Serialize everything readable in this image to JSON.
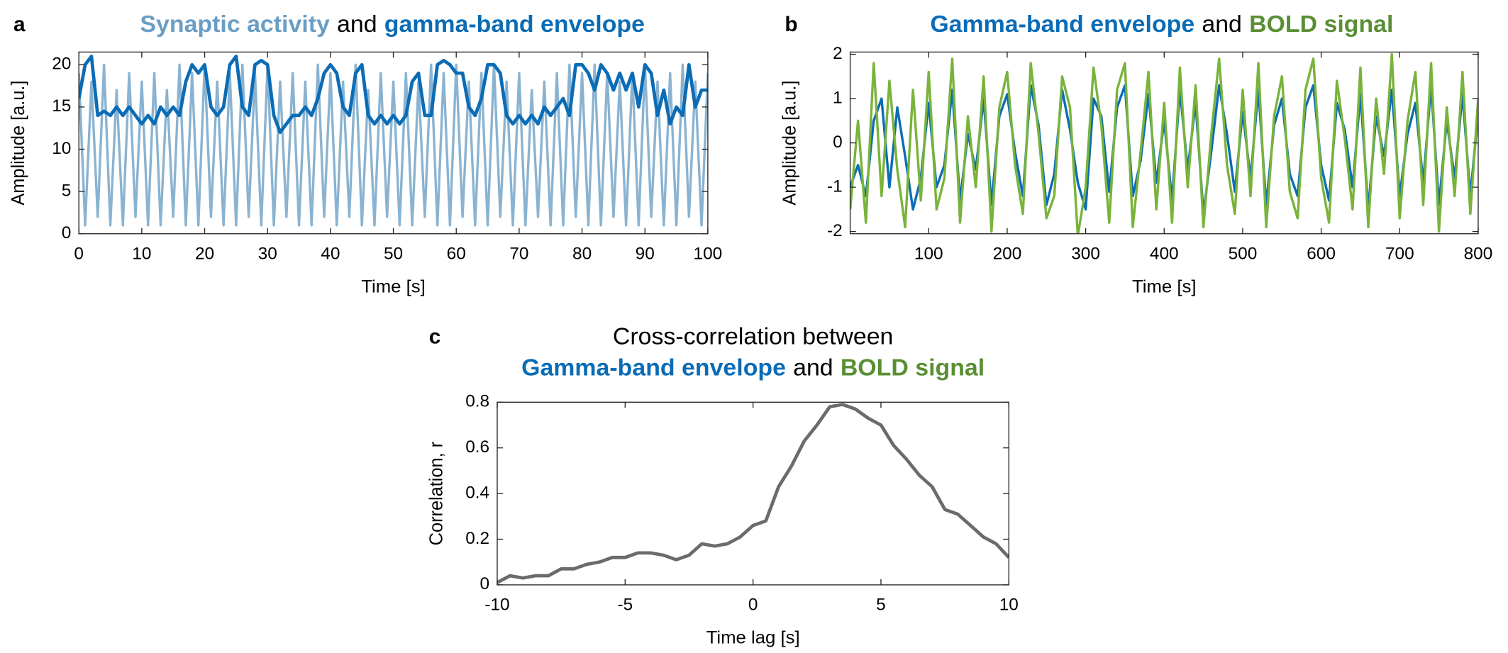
{
  "chart_data": [
    {
      "type": "line",
      "panel": "a",
      "title": [
        [
          {
            "text": "Synaptic activity",
            "color": "#6a9ec4",
            "bold": true
          },
          {
            "text": "and",
            "color": "#000000",
            "bold": false
          },
          {
            "text": "gamma-band envelope",
            "color": "#0b6cb6",
            "bold": true
          }
        ]
      ],
      "xlabel": "Time [s]",
      "ylabel": "Amplitude [a.u.]",
      "xlim": [
        0,
        100
      ],
      "ylim": [
        0,
        21.5
      ],
      "xticks": [
        0,
        10,
        20,
        30,
        40,
        50,
        60,
        70,
        80,
        90,
        100
      ],
      "yticks": [
        0,
        5,
        10,
        15,
        20
      ],
      "x": [
        0,
        1,
        2,
        3,
        4,
        5,
        6,
        7,
        8,
        9,
        10,
        11,
        12,
        13,
        14,
        15,
        16,
        17,
        18,
        19,
        20,
        21,
        22,
        23,
        24,
        25,
        26,
        27,
        28,
        29,
        30,
        31,
        32,
        33,
        34,
        35,
        36,
        37,
        38,
        39,
        40,
        41,
        42,
        43,
        44,
        45,
        46,
        47,
        48,
        49,
        50,
        51,
        52,
        53,
        54,
        55,
        56,
        57,
        58,
        59,
        60,
        61,
        62,
        63,
        64,
        65,
        66,
        67,
        68,
        69,
        70,
        71,
        72,
        73,
        74,
        75,
        76,
        77,
        78,
        79,
        80,
        81,
        82,
        83,
        84,
        85,
        86,
        87,
        88,
        89,
        90,
        91,
        92,
        93,
        94,
        95,
        96,
        97,
        98,
        99,
        100
      ],
      "series": [
        {
          "color": "#8ab3d1",
          "line_width": 2.5,
          "values": [
            19,
            1,
            18,
            2,
            20,
            1,
            17,
            1,
            19,
            2,
            18,
            1,
            19,
            1,
            17,
            2,
            20,
            1,
            19,
            1,
            20,
            2,
            18,
            1,
            19,
            1,
            20,
            2,
            19,
            1,
            20,
            1,
            18,
            2,
            19,
            1,
            18,
            1,
            20,
            2,
            19,
            1,
            18,
            2,
            20,
            1,
            17,
            1,
            19,
            2,
            18,
            1,
            19,
            1,
            18,
            2,
            20,
            1,
            19,
            1,
            20,
            2,
            18,
            1,
            19,
            1,
            20,
            2,
            18,
            1,
            19,
            1,
            17,
            2,
            18,
            1,
            19,
            1,
            20,
            2,
            19,
            1,
            20,
            1,
            19,
            2,
            18,
            1,
            19,
            1,
            20,
            2,
            18,
            1,
            19,
            1,
            20,
            2,
            18,
            1,
            19
          ]
        },
        {
          "color": "#0b6cb6",
          "line_width": 3.5,
          "values": [
            16,
            20,
            21,
            14,
            14.5,
            14,
            15,
            14,
            15,
            14,
            13,
            14,
            13,
            15,
            14,
            15,
            14,
            18,
            20,
            19,
            20,
            15,
            14,
            15,
            20,
            21,
            15,
            14,
            20,
            20.5,
            20,
            14,
            12,
            13,
            14,
            14,
            15,
            14,
            16,
            19,
            20,
            19,
            15,
            14,
            19,
            20,
            14,
            13,
            14,
            13,
            14,
            13,
            14,
            18,
            19,
            14,
            14,
            20,
            20.5,
            20,
            19,
            19,
            15,
            14,
            16,
            20,
            20,
            19,
            14,
            13,
            14,
            13,
            14,
            13,
            15,
            14,
            15,
            16,
            14,
            20,
            20,
            19,
            17,
            20,
            19,
            17,
            19,
            17,
            19,
            15,
            20,
            19,
            14,
            17,
            13,
            15,
            14,
            20,
            15,
            17,
            17
          ]
        }
      ]
    },
    {
      "type": "line",
      "panel": "b",
      "title": [
        [
          {
            "text": "Gamma-band envelope",
            "color": "#0b6cb6",
            "bold": true
          },
          {
            "text": "and",
            "color": "#000000",
            "bold": false
          },
          {
            "text": "BOLD signal",
            "color": "#5a8f35",
            "bold": true
          }
        ]
      ],
      "xlabel": "Time [s]",
      "ylabel": "Amplitude [a.u.]",
      "xlim": [
        0,
        800
      ],
      "ylim": [
        -2.05,
        2.05
      ],
      "xticks": [
        100,
        200,
        300,
        400,
        500,
        600,
        700,
        800
      ],
      "yticks": [
        -2,
        -1,
        0,
        1,
        2
      ],
      "x": [
        0,
        10,
        20,
        30,
        40,
        50,
        60,
        70,
        80,
        90,
        100,
        110,
        120,
        130,
        140,
        150,
        160,
        170,
        180,
        190,
        200,
        210,
        220,
        230,
        240,
        250,
        260,
        270,
        280,
        290,
        300,
        310,
        320,
        330,
        340,
        350,
        360,
        370,
        380,
        390,
        400,
        410,
        420,
        430,
        440,
        450,
        460,
        470,
        480,
        490,
        500,
        510,
        520,
        530,
        540,
        550,
        560,
        570,
        580,
        590,
        600,
        610,
        620,
        630,
        640,
        650,
        660,
        670,
        680,
        690,
        700,
        710,
        720,
        730,
        740,
        750,
        760,
        770,
        780,
        790,
        800
      ],
      "series": [
        {
          "color": "#0b6cb6",
          "line_width": 2.5,
          "values": [
            -1,
            -0.5,
            -1.2,
            0.5,
            1,
            -1,
            0.8,
            -0.3,
            -1.5,
            -0.8,
            0.9,
            -1,
            -0.5,
            1.2,
            -1.3,
            0.2,
            -0.6,
            1,
            -1.4,
            0.6,
            1.1,
            -0.2,
            -1.2,
            1.3,
            0.4,
            -1.4,
            -0.7,
            1.2,
            0.3,
            -0.9,
            -1.5,
            1,
            0.6,
            -1.1,
            0.8,
            1.3,
            -1.2,
            -0.4,
            1.1,
            -0.9,
            0.5,
            -1.3,
            1.2,
            -0.6,
            0.9,
            -1.6,
            -0.2,
            1.3,
            0.2,
            -1.1,
            0.7,
            -0.8,
            1.2,
            -1.4,
            0.4,
            1,
            -0.7,
            -1.2,
            0.8,
            1.3,
            -0.5,
            -1.3,
            0.9,
            0.3,
            -1,
            1.1,
            -1.5,
            0.6,
            -0.3,
            1.2,
            -1.2,
            0.2,
            0.9,
            -0.9,
            1.3,
            -1.4,
            0.5,
            -0.8,
            1.1,
            -1.2,
            0.7
          ]
        },
        {
          "color": "#79b33a",
          "line_width": 2.5,
          "values": [
            -1.5,
            0.5,
            -1.8,
            1.8,
            -1.2,
            1.4,
            -0.6,
            -1.9,
            1.2,
            -1.3,
            1.6,
            -1.5,
            -0.8,
            1.9,
            -1.8,
            0.6,
            -1,
            1.5,
            -2,
            0.8,
            1.6,
            -0.5,
            -1.6,
            1.8,
            0.2,
            -1.7,
            -1.2,
            1.5,
            0.8,
            -2.1,
            -1,
            1.7,
            0.4,
            -1.8,
            1.2,
            1.8,
            -1.9,
            -0.2,
            1.6,
            -1.5,
            0.9,
            -1.8,
            1.7,
            -1,
            1.3,
            -1.9,
            0.2,
            1.9,
            -0.5,
            -1.6,
            1.2,
            -1.2,
            1.8,
            -1.9,
            0.6,
            1.5,
            -1.1,
            -1.7,
            1.2,
            1.9,
            -0.8,
            -1.8,
            1.4,
            0.1,
            -1.5,
            1.7,
            -1.9,
            1,
            -0.7,
            2,
            -1.7,
            0.5,
            1.6,
            -1.4,
            1.8,
            -2,
            0.8,
            -1.2,
            1.6,
            -1.6,
            1
          ]
        }
      ]
    },
    {
      "type": "line",
      "panel": "c",
      "title": [
        [
          {
            "text": "Cross-correlation between",
            "color": "#000000",
            "bold": false
          }
        ],
        [
          {
            "text": "Gamma-band envelope",
            "color": "#0b6cb6",
            "bold": true
          },
          {
            "text": "and",
            "color": "#000000",
            "bold": false
          },
          {
            "text": "BOLD signal",
            "color": "#5a8f35",
            "bold": true
          }
        ]
      ],
      "xlabel": "Time lag [s]",
      "ylabel": "Correlation, r",
      "xlim": [
        -10,
        10
      ],
      "ylim": [
        0,
        0.8
      ],
      "xticks": [
        -10,
        -5,
        0,
        5,
        10
      ],
      "yticks": [
        0,
        0.2,
        0.4,
        0.6,
        0.8
      ],
      "x": [
        -10,
        -9.5,
        -9,
        -8.5,
        -8,
        -7.5,
        -7,
        -6.5,
        -6,
        -5.5,
        -5,
        -4.5,
        -4,
        -3.5,
        -3,
        -2.5,
        -2,
        -1.5,
        -1,
        -0.5,
        0,
        0.5,
        1,
        1.5,
        2,
        2.5,
        3,
        3.5,
        4,
        4.5,
        5,
        5.5,
        6,
        6.5,
        7,
        7.5,
        8,
        8.5,
        9,
        9.5,
        10
      ],
      "series": [
        {
          "color": "#6b6b6b",
          "line_width": 3.5,
          "values": [
            0.01,
            0.04,
            0.03,
            0.04,
            0.04,
            0.07,
            0.07,
            0.09,
            0.1,
            0.12,
            0.12,
            0.14,
            0.14,
            0.13,
            0.11,
            0.13,
            0.18,
            0.17,
            0.18,
            0.21,
            0.26,
            0.28,
            0.43,
            0.52,
            0.63,
            0.7,
            0.78,
            0.79,
            0.77,
            0.73,
            0.7,
            0.61,
            0.55,
            0.48,
            0.43,
            0.33,
            0.31,
            0.26,
            0.21,
            0.18,
            0.12
          ]
        }
      ]
    }
  ]
}
